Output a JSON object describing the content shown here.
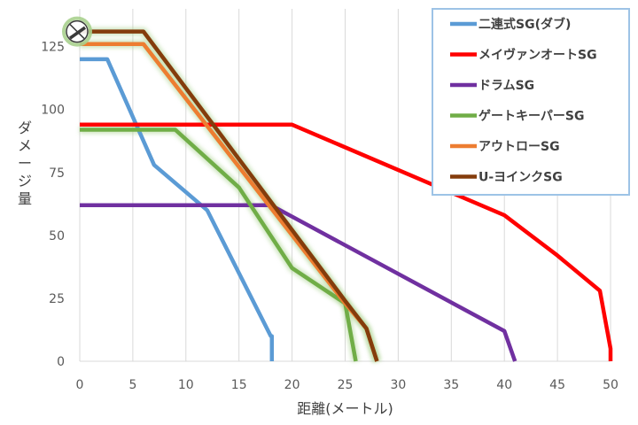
{
  "chart_data": {
    "type": "line",
    "title": "",
    "xlabel": "距離(メートル)",
    "ylabel": "ダメージ量",
    "xlim": [
      0,
      50
    ],
    "ylim": [
      0,
      140
    ],
    "xticks": [
      0,
      5,
      10,
      15,
      20,
      25,
      30,
      35,
      40,
      45,
      50
    ],
    "xtick_labels": [
      "0",
      "5",
      "10",
      "15",
      "20",
      "25",
      "30",
      "35",
      "40",
      "45",
      "50"
    ],
    "yticks": [
      0,
      25,
      50,
      75,
      100,
      125
    ],
    "ytick_labels": [
      "0",
      "25",
      "50",
      "75",
      "100",
      "125"
    ],
    "grid": {
      "vertical": true,
      "horizontal": false
    },
    "legend_position": "top-right",
    "series": [
      {
        "name": "二連式SG(ダブ)",
        "color": "#5B9BD5",
        "x": [
          0,
          2.6,
          7,
          12,
          18,
          18.1,
          18.1
        ],
        "y": [
          120,
          120,
          78,
          60,
          10,
          10,
          0
        ]
      },
      {
        "name": "メイヴァンオートSG",
        "color": "#FF0000",
        "x": [
          0,
          20,
          40,
          45,
          49,
          50,
          50
        ],
        "y": [
          94,
          94,
          58,
          42,
          28,
          5,
          0
        ]
      },
      {
        "name": "ドラムSG",
        "color": "#7030A0",
        "x": [
          0,
          18,
          40,
          41
        ],
        "y": [
          62,
          62,
          12,
          0
        ]
      },
      {
        "name": "ゲートキーパーSG",
        "color": "#70AD47",
        "x": [
          0,
          9,
          15,
          20,
          25,
          26
        ],
        "y": [
          92,
          92,
          69,
          37,
          23,
          0
        ]
      },
      {
        "name": "アウトローSG",
        "color": "#ED7D31",
        "x": [
          0,
          6,
          25,
          27,
          28
        ],
        "y": [
          126,
          126,
          23,
          13,
          0
        ]
      },
      {
        "name": "U-ヨインクSG",
        "color": "#843C0C",
        "x": [
          0,
          6,
          25,
          27,
          28
        ],
        "y": [
          131,
          131,
          24,
          13,
          0
        ]
      }
    ]
  }
}
